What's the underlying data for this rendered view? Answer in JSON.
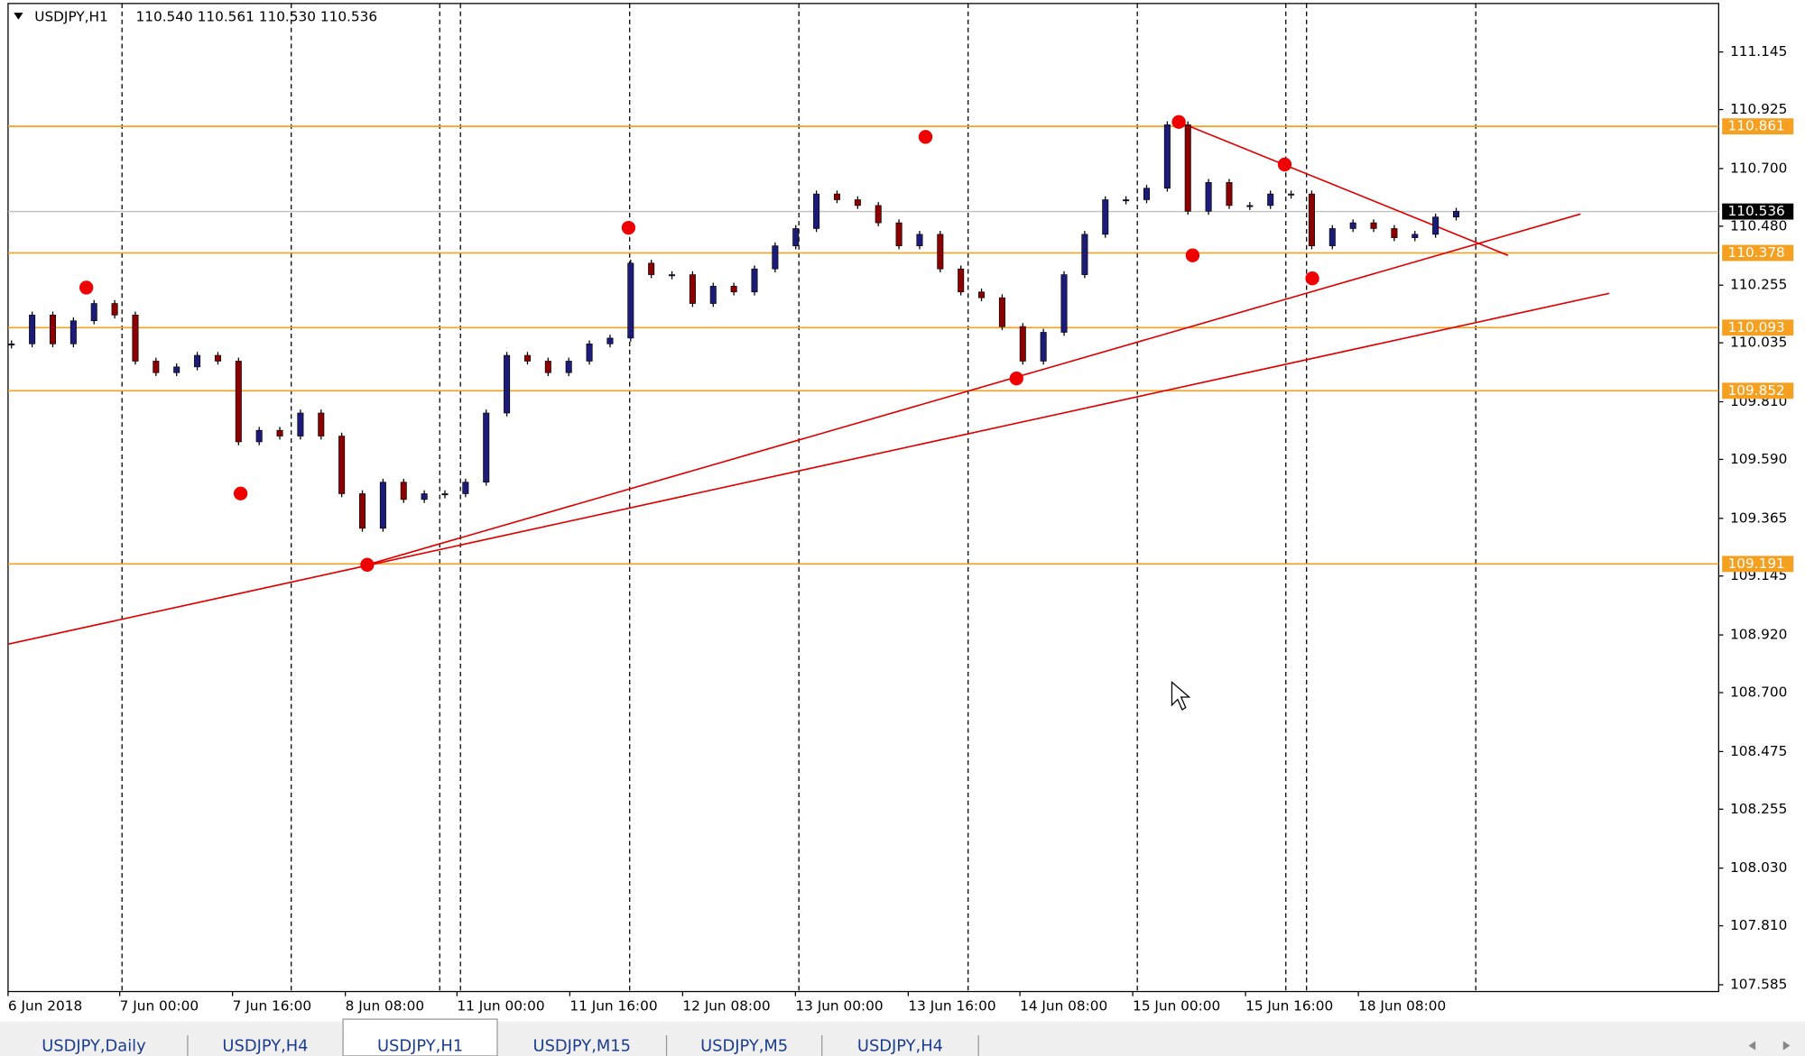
{
  "header": {
    "symbol": "USDJPY,H1",
    "ohlc": "110.540 110.561 110.530 110.536"
  },
  "chart": {
    "type": "candlestick",
    "ylim": [
      107.559,
      111.33
    ],
    "yticks": [
      111.145,
      110.925,
      {
        "value": 110.7,
        "label": "110.700"
      },
      {
        "value": 110.48,
        "label": "110.480"
      },
      110.255,
      110.035,
      {
        "value": 109.81,
        "label": "109.810"
      },
      {
        "value": 109.59,
        "label": "109.590"
      },
      109.365,
      109.145,
      {
        "value": 108.92,
        "label": "108.920"
      },
      {
        "value": 108.7,
        "label": "108.700"
      },
      108.475,
      108.255,
      {
        "value": 108.03,
        "label": "108.030"
      },
      {
        "value": 107.81,
        "label": "107.810"
      },
      107.585
    ],
    "levels": [
      110.861,
      110.378,
      110.093,
      109.852,
      109.191
    ],
    "current_price": 110.536,
    "x_labels": [
      "6 Jun 2018",
      "7 Jun 00:00",
      "7 Jun 16:00",
      "8 Jun 08:00",
      "11 Jun 00:00",
      "11 Jun 16:00",
      "12 Jun 08:00",
      "13 Jun 00:00",
      "13 Jun 16:00",
      "14 Jun 08:00",
      "15 Jun 00:00",
      "15 Jun 16:00",
      "18 Jun 08:00"
    ],
    "closes": [
      110.031,
      110.141,
      110.031,
      110.119,
      110.185,
      110.141,
      109.965,
      109.921,
      109.943,
      109.987,
      109.965,
      109.657,
      109.701,
      109.679,
      109.767,
      109.679,
      109.459,
      109.327,
      109.503,
      109.437,
      109.459,
      109.459,
      109.503,
      109.767,
      109.987,
      109.965,
      109.921,
      109.965,
      110.031,
      110.053,
      110.339,
      110.295,
      110.295,
      110.185,
      110.251,
      110.229,
      110.317,
      110.405,
      110.471,
      110.603,
      110.581,
      110.559,
      110.493,
      110.405,
      110.449,
      110.317,
      110.229,
      110.207,
      110.097,
      109.965,
      110.075,
      110.295,
      110.449,
      110.581,
      110.581,
      110.625,
      110.867,
      110.537,
      110.647,
      110.559,
      110.559,
      110.603,
      110.603,
      110.405,
      110.471,
      110.493,
      110.471,
      110.436,
      110.449,
      110.515,
      110.537
    ]
  },
  "tabs": [
    "USDJPY,Daily",
    "USDJPY,H4",
    "USDJPY,H1",
    "USDJPY,M15",
    "USDJPY,M5",
    "USDJPY,H4"
  ]
}
